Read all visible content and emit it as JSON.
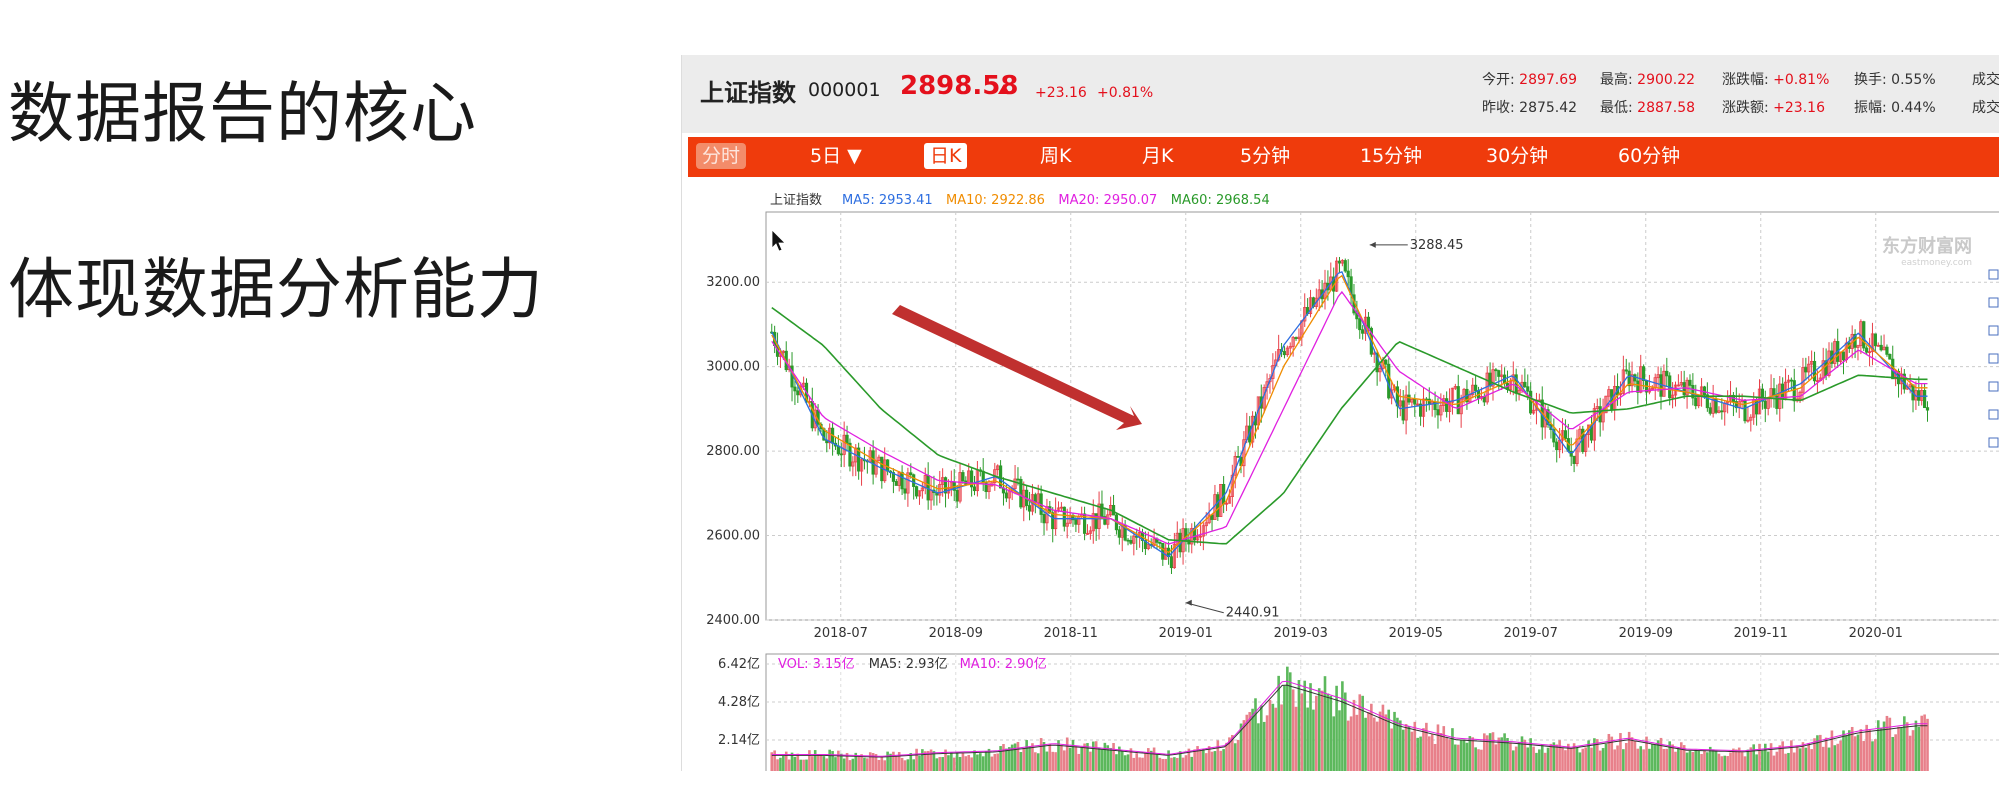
{
  "slide": {
    "title1": "数据报告的核心",
    "title2": "体现数据分析能力"
  },
  "quote": {
    "name": "上证指数",
    "code": "000001",
    "price": "2898.58",
    "change": "+23.16",
    "change_pct": "+0.81%",
    "stats": [
      {
        "label": "今开:",
        "value": "2897.69",
        "color": "red"
      },
      {
        "label": "最高:",
        "value": "2900.22",
        "color": "red"
      },
      {
        "label": "涨跌幅:",
        "value": "+0.81%",
        "color": "red"
      },
      {
        "label": "换手:",
        "value": "0.55%",
        "color": "plain"
      },
      {
        "label": "成交",
        "value": "",
        "color": "plain"
      },
      {
        "label": "昨收:",
        "value": "2875.42",
        "color": "plain"
      },
      {
        "label": "最低:",
        "value": "2887.58",
        "color": "red"
      },
      {
        "label": "涨跌额:",
        "value": "+23.16",
        "color": "red"
      },
      {
        "label": "振幅:",
        "value": "0.44%",
        "color": "plain"
      },
      {
        "label": "成交",
        "value": "",
        "color": "plain"
      }
    ]
  },
  "tabs": [
    {
      "label": "分时",
      "state": "dim"
    },
    {
      "label": "5日 ▼",
      "state": "normal"
    },
    {
      "label": "日K",
      "state": "selected"
    },
    {
      "label": "周K",
      "state": "normal"
    },
    {
      "label": "月K",
      "state": "normal"
    },
    {
      "label": "5分钟",
      "state": "normal"
    },
    {
      "label": "15分钟",
      "state": "normal"
    },
    {
      "label": "30分钟",
      "state": "normal"
    },
    {
      "label": "60分钟",
      "state": "normal"
    }
  ],
  "chart_data": [
    {
      "type": "line",
      "title": "上证指数",
      "legend": [
        {
          "name": "MA5",
          "value": "2953.41",
          "color": "#2d6ee0"
        },
        {
          "name": "MA10",
          "value": "2922.86",
          "color": "#f08c00"
        },
        {
          "name": "MA20",
          "value": "2950.07",
          "color": "#e020e0"
        },
        {
          "name": "MA60",
          "value": "2968.54",
          "color": "#2a9a2a"
        }
      ],
      "watermark": "东方财富网",
      "watermark_sub": "eastmoney.com",
      "ylim": [
        2400,
        3300
      ],
      "yticks": [
        "2400.00",
        "2600.00",
        "2800.00",
        "3000.00",
        "3200.00"
      ],
      "xticks": [
        "2018-07",
        "2018-09",
        "2018-11",
        "2019-01",
        "2019-03",
        "2019-05",
        "2019-07",
        "2019-09",
        "2019-11",
        "2020-01"
      ],
      "annotations": [
        {
          "label": "3288.45",
          "x": "2019-04",
          "y": 3288.45
        },
        {
          "label": "2440.91",
          "x": "2019-01",
          "y": 2440.91
        }
      ],
      "series": [
        {
          "name": "MA5",
          "x": [
            "2018-06",
            "2018-07",
            "2018-08",
            "2018-09",
            "2018-10",
            "2018-11",
            "2018-12",
            "2019-01",
            "2019-02",
            "2019-03",
            "2019-04",
            "2019-05",
            "2019-06",
            "2019-07",
            "2019-08",
            "2019-09",
            "2019-10",
            "2019-11",
            "2019-12",
            "2020-01",
            "2020-02"
          ],
          "values": [
            3110,
            2830,
            2760,
            2700,
            2740,
            2640,
            2640,
            2550,
            2700,
            3050,
            3230,
            2900,
            2920,
            2980,
            2790,
            2980,
            2940,
            2900,
            2960,
            3080,
            2930
          ]
        },
        {
          "name": "MA10",
          "x": [
            "2018-06",
            "2018-07",
            "2018-08",
            "2018-09",
            "2018-10",
            "2018-11",
            "2018-12",
            "2019-01",
            "2019-02",
            "2019-03",
            "2019-04",
            "2019-05",
            "2019-06",
            "2019-07",
            "2019-08",
            "2019-09",
            "2019-10",
            "2019-11",
            "2019-12",
            "2020-01",
            "2020-02"
          ],
          "values": [
            3100,
            2850,
            2770,
            2710,
            2730,
            2650,
            2640,
            2560,
            2680,
            3000,
            3220,
            2930,
            2910,
            2970,
            2810,
            2960,
            2940,
            2910,
            2950,
            3070,
            2950
          ]
        },
        {
          "name": "MA20",
          "x": [
            "2018-06",
            "2018-07",
            "2018-08",
            "2018-09",
            "2018-10",
            "2018-11",
            "2018-12",
            "2019-01",
            "2019-02",
            "2019-03",
            "2019-04",
            "2019-05",
            "2019-06",
            "2019-07",
            "2019-08",
            "2019-09",
            "2019-10",
            "2019-11",
            "2019-12",
            "2020-01",
            "2020-02"
          ],
          "values": [
            3080,
            2880,
            2800,
            2730,
            2720,
            2660,
            2640,
            2580,
            2620,
            2900,
            3180,
            2990,
            2900,
            2960,
            2850,
            2940,
            2950,
            2920,
            2930,
            3040,
            2960
          ]
        },
        {
          "name": "MA60",
          "x": [
            "2018-06",
            "2018-07",
            "2018-08",
            "2018-09",
            "2018-10",
            "2018-11",
            "2018-12",
            "2019-01",
            "2019-02",
            "2019-03",
            "2019-04",
            "2019-05",
            "2019-06",
            "2019-07",
            "2019-08",
            "2019-09",
            "2019-10",
            "2019-11",
            "2019-12",
            "2020-01",
            "2020-02"
          ],
          "values": [
            3150,
            3050,
            2900,
            2790,
            2740,
            2700,
            2660,
            2590,
            2580,
            2700,
            2900,
            3060,
            3000,
            2940,
            2890,
            2900,
            2930,
            2930,
            2920,
            2980,
            2970
          ]
        }
      ]
    },
    {
      "type": "bar",
      "title": "",
      "legend": [
        {
          "name": "VOL",
          "value": "3.15亿",
          "color": "#e020e0"
        },
        {
          "name": "MA5",
          "value": "2.93亿",
          "color": "#333333"
        },
        {
          "name": "MA10",
          "value": "2.90亿",
          "color": "#e020e0"
        }
      ],
      "ylim": [
        0,
        6.42
      ],
      "yticks": [
        "0",
        "2.14亿",
        "4.28亿",
        "6.42亿"
      ],
      "x": [
        "2018-06",
        "2018-07",
        "2018-08",
        "2018-09",
        "2018-10",
        "2018-11",
        "2018-12",
        "2019-01",
        "2019-02",
        "2019-03",
        "2019-04",
        "2019-05",
        "2019-06",
        "2019-07",
        "2019-08",
        "2019-09",
        "2019-10",
        "2019-11",
        "2019-12",
        "2020-01",
        "2020-02"
      ],
      "values": [
        1.3,
        1.3,
        1.2,
        1.4,
        1.5,
        1.9,
        1.6,
        1.3,
        1.8,
        5.4,
        4.4,
        3.0,
        2.2,
        2.0,
        1.7,
        2.2,
        1.6,
        1.5,
        1.8,
        2.6,
        3.0
      ]
    }
  ]
}
